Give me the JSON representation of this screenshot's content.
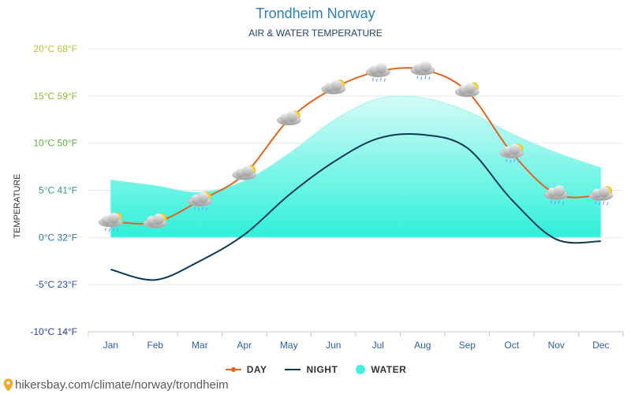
{
  "source": {
    "text": "hikersbay.com/climate/norway/trondheim",
    "pin_icon": "location-pin-icon",
    "pin_color": "#f5a623"
  },
  "chart_data": {
    "type": "line",
    "title": "Trondheim Norway",
    "subtitle": "AIR & WATER TEMPERATURE",
    "ylabel": "TEMPERATURE",
    "categories": [
      "Jan",
      "Feb",
      "Mar",
      "Apr",
      "May",
      "Jun",
      "Jul",
      "Aug",
      "Sep",
      "Oct",
      "Nov",
      "Dec"
    ],
    "ylim": [
      -10,
      20
    ],
    "yticks": [
      {
        "value": 20,
        "label": "20°C 68°F",
        "color": "#b5c730"
      },
      {
        "value": 15,
        "label": "15°C 59°F",
        "color": "#8bbf2a"
      },
      {
        "value": 10,
        "label": "10°C 50°F",
        "color": "#5cb233"
      },
      {
        "value": 5,
        "label": "5°C 41°F",
        "color": "#2f9e7a"
      },
      {
        "value": 0,
        "label": "0°C 32°F",
        "color": "#2a73b8"
      },
      {
        "value": -5,
        "label": "-5°C 23°F",
        "color": "#2a4fb0"
      },
      {
        "value": -10,
        "label": "-10°C 14°F",
        "color": "#2a3a9e"
      }
    ],
    "grid": true,
    "legend_position": "bottom",
    "series": [
      {
        "name": "DAY",
        "kind": "line",
        "color": "#e3621c",
        "values": [
          1.7,
          1.6,
          3.9,
          6.7,
          12.5,
          15.8,
          17.6,
          17.8,
          15.5,
          9.0,
          4.6,
          4.5
        ]
      },
      {
        "name": "NIGHT",
        "kind": "line",
        "color": "#0d3a56",
        "values": [
          -3.4,
          -4.5,
          -2.5,
          0.3,
          4.5,
          8.0,
          10.5,
          10.9,
          9.5,
          4.0,
          -0.2,
          -0.4
        ]
      },
      {
        "name": "WATER",
        "kind": "area",
        "color": "#43f0e0",
        "values": [
          6.1,
          5.5,
          4.8,
          6.0,
          8.9,
          12.4,
          14.7,
          14.8,
          13.4,
          11.0,
          9.0,
          7.4
        ]
      }
    ],
    "weather_icons": [
      "cloud-sun-rain-icon",
      "cloud-sun-icon",
      "cloud-sun-rain-icon",
      "cloud-sun-icon",
      "cloud-sun-icon",
      "cloud-sun-icon",
      "cloud-rain-icon",
      "cloud-rain-icon",
      "cloud-sun-icon",
      "cloud-sun-rain-icon",
      "cloud-rain-icon",
      "cloud-sun-rain-icon"
    ]
  }
}
